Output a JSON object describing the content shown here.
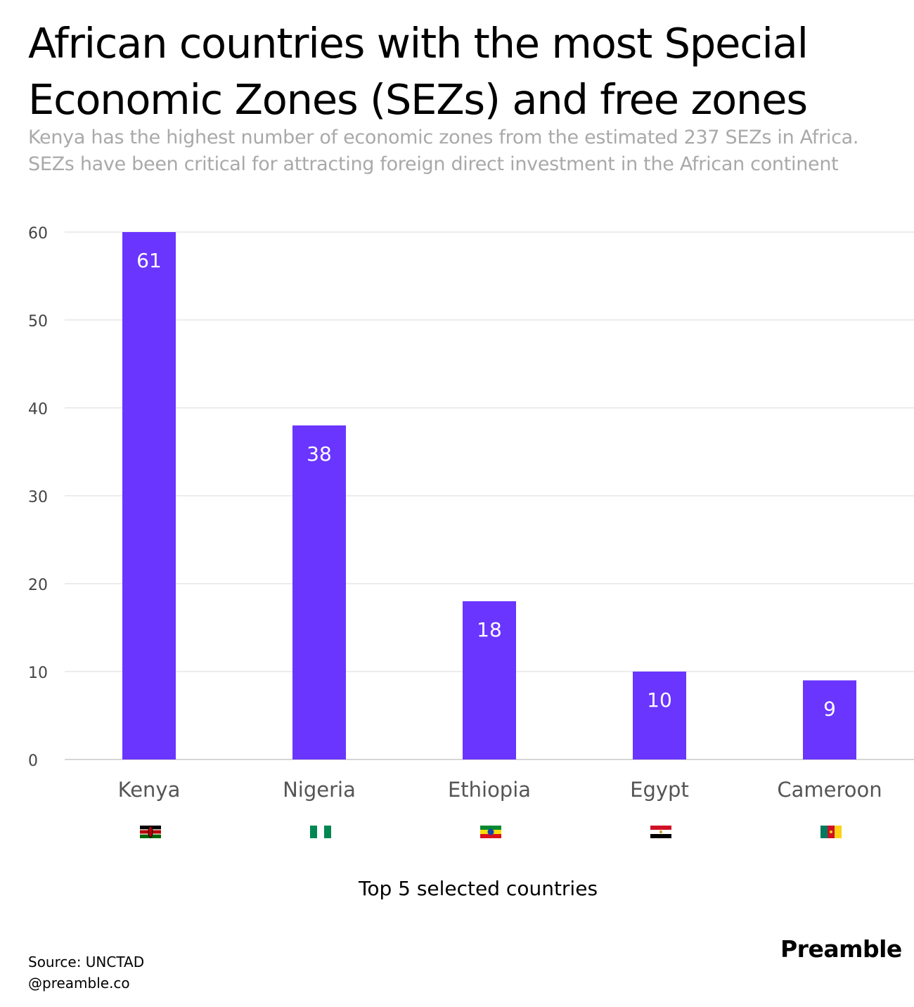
{
  "header": {
    "title": "African countries with the most Special Economic Zones (SEZs) and free zones",
    "subtitle": "Kenya has the highest number of economic zones from the estimated 237 SEZs in Africa. SEZs have been critical for attracting foreign direct investment in the African continent"
  },
  "chart_data": {
    "type": "bar",
    "title": "African countries with the most Special Economic Zones (SEZs) and free zones",
    "subtitle": "Kenya has the highest number of economic zones from the estimated 237 SEZs in Africa. SEZs have been critical for attracting foreign direct investment in the African continent",
    "categories": [
      "Kenya",
      "Nigeria",
      "Ethiopia",
      "Egypt",
      "Cameroon"
    ],
    "values": [
      61,
      38,
      18,
      10,
      9
    ],
    "data_labels": [
      "61",
      "38",
      "18",
      "10",
      "9"
    ],
    "flags": [
      "kenya-flag-icon",
      "nigeria-flag-icon",
      "ethiopia-flag-icon",
      "egypt-flag-icon",
      "cameroon-flag-icon"
    ],
    "xlabel": "Top 5 selected countries",
    "ylabel": "",
    "ylim": [
      0,
      60
    ],
    "yticks": [
      0,
      10,
      20,
      30,
      40,
      50,
      60
    ],
    "grid": true,
    "bar_color": "#6a35ff",
    "grid_color": "#d9d9d9",
    "note": "Kenya bar is clipped at the 60 axis maximum"
  },
  "footer": {
    "source": "Source: UNCTAD",
    "handle": "@preamble.co",
    "brand": "Preamble"
  }
}
